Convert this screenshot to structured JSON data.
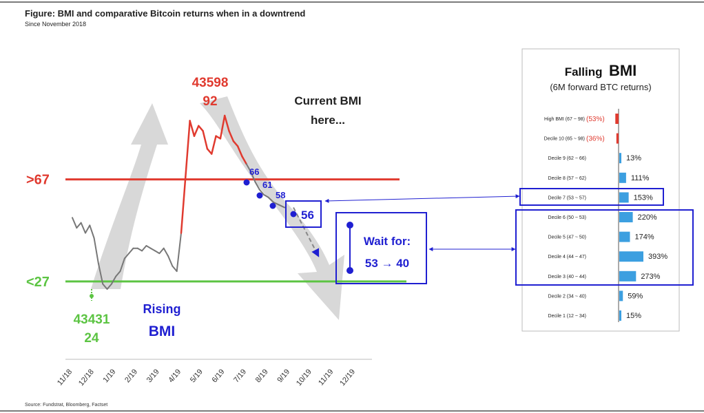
{
  "header": {
    "title": "Figure: BMI and comparative Bitcoin returns when in a downtrend",
    "subtitle": "Since November 2018"
  },
  "footer": {
    "source": "Source: Fundstrat, Bloomberg, Factset"
  },
  "colors": {
    "red": "#e03a2f",
    "green": "#5cc443",
    "blue": "#1f1fd1",
    "gray_line": "#777777",
    "bar_blue": "#3c9fe0",
    "arrow_gray": "#d4d4d4"
  },
  "chart_data": [
    {
      "type": "line",
      "x_ticks": [
        "11/18",
        "12/18",
        "1/19",
        "2/19",
        "3/19",
        "4/19",
        "5/19",
        "6/19",
        "7/19",
        "8/19",
        "9/19",
        "10/19",
        "11/19",
        "12/19"
      ],
      "x_range": [
        "11/18",
        "12/19"
      ],
      "y_range": [
        15,
        100
      ],
      "thresholds": [
        {
          "label": ">67",
          "value": 67,
          "color": "#e03a2f"
        },
        {
          "label": "<27",
          "value": 27,
          "color": "#5cc443"
        }
      ],
      "series": [
        {
          "color_low": "#777777",
          "color_high": "#e03a2f",
          "points": [
            [
              "11/18",
              52
            ],
            [
              "11/18",
              48
            ],
            [
              "11/18",
              50
            ],
            [
              "11/18",
              46
            ],
            [
              "11/18",
              49
            ],
            [
              "12/18",
              44
            ],
            [
              "12/18",
              34
            ],
            [
              "12/18",
              26
            ],
            [
              "12/18",
              24
            ],
            [
              "12/18",
              26
            ],
            [
              "1/19",
              29
            ],
            [
              "1/19",
              31
            ],
            [
              "1/19",
              36
            ],
            [
              "1/19",
              38
            ],
            [
              "1/19",
              40
            ],
            [
              "2/19",
              40
            ],
            [
              "2/19",
              39
            ],
            [
              "2/19",
              41
            ],
            [
              "2/19",
              40
            ],
            [
              "2/19",
              39
            ],
            [
              "3/19",
              38
            ],
            [
              "3/19",
              40
            ],
            [
              "3/19",
              37
            ],
            [
              "3/19",
              33
            ],
            [
              "3/19",
              31
            ],
            [
              "4/19",
              46
            ],
            [
              "4/19",
              68
            ],
            [
              "4/19",
              90
            ],
            [
              "4/19",
              84
            ],
            [
              "4/19",
              88
            ],
            [
              "5/19",
              86
            ],
            [
              "5/19",
              79
            ],
            [
              "5/19",
              77
            ],
            [
              "5/19",
              84
            ],
            [
              "5/19",
              83
            ],
            [
              "6/19",
              92
            ],
            [
              "6/19",
              86
            ],
            [
              "6/19",
              82
            ],
            [
              "6/19",
              80
            ],
            [
              "6/19",
              76
            ],
            [
              "7/19",
              73
            ],
            [
              "7/19",
              70
            ],
            [
              "7/19",
              66
            ],
            [
              "7/19",
              63
            ],
            [
              "7/19",
              61
            ],
            [
              "8/19",
              60
            ],
            [
              "8/19",
              58
            ],
            [
              "8/19",
              57
            ],
            [
              "8/19",
              56
            ]
          ]
        }
      ],
      "projection": [
        [
          "9/19",
          56
        ],
        [
          "10/19",
          40
        ]
      ],
      "markers": [
        {
          "x": "7/19",
          "y": 66,
          "label": "66"
        },
        {
          "x": "8/19",
          "y": 61,
          "label": "61"
        },
        {
          "x": "8/19",
          "y": 58,
          "label": "58"
        },
        {
          "x": "9/19",
          "y": 56,
          "label": "56"
        }
      ],
      "annotations": {
        "peak_line1": "43598",
        "peak_line2": "92",
        "trough_line1": "43431",
        "trough_line2": "24",
        "current_line1": "Current BMI",
        "current_line2": "here...",
        "rising_line1": "Rising",
        "rising_line2": "BMI",
        "wait_line1": "Wait for:",
        "wait_line2": "53 → 40"
      }
    },
    {
      "type": "bar",
      "title": "Falling",
      "title_emph": "BMI",
      "subtitle": "(6M forward BTC returns)",
      "categories": [
        "High BMI (67 ~ 98)",
        "Decile 10 (65 ~ 98)",
        "Decile 9 (62 ~ 66)",
        "Decile 8 (57 ~ 62)",
        "Decile 7 (53 ~ 57)",
        "Decile 6 (50 ~ 53)",
        "Decile 5 (47 ~ 50)",
        "Decile 4 (44 ~ 47)",
        "Decile 3 (40 ~ 44)",
        "Decile 2 (34 ~ 40)",
        "Decile 1 (12 ~ 34)"
      ],
      "values": [
        -53,
        -36,
        13,
        111,
        153,
        220,
        174,
        393,
        273,
        59,
        15
      ],
      "labels": [
        "(53%)",
        "(36%)",
        "13%",
        "111%",
        "153%",
        "220%",
        "174%",
        "393%",
        "273%",
        "59%",
        "15%"
      ],
      "highlight_single": "Decile 7 (53 ~ 57)",
      "highlight_group": [
        "Decile 6 (50 ~ 53)",
        "Decile 5 (47 ~ 50)",
        "Decile 4 (44 ~ 47)",
        "Decile 3 (40 ~ 44)"
      ]
    }
  ]
}
